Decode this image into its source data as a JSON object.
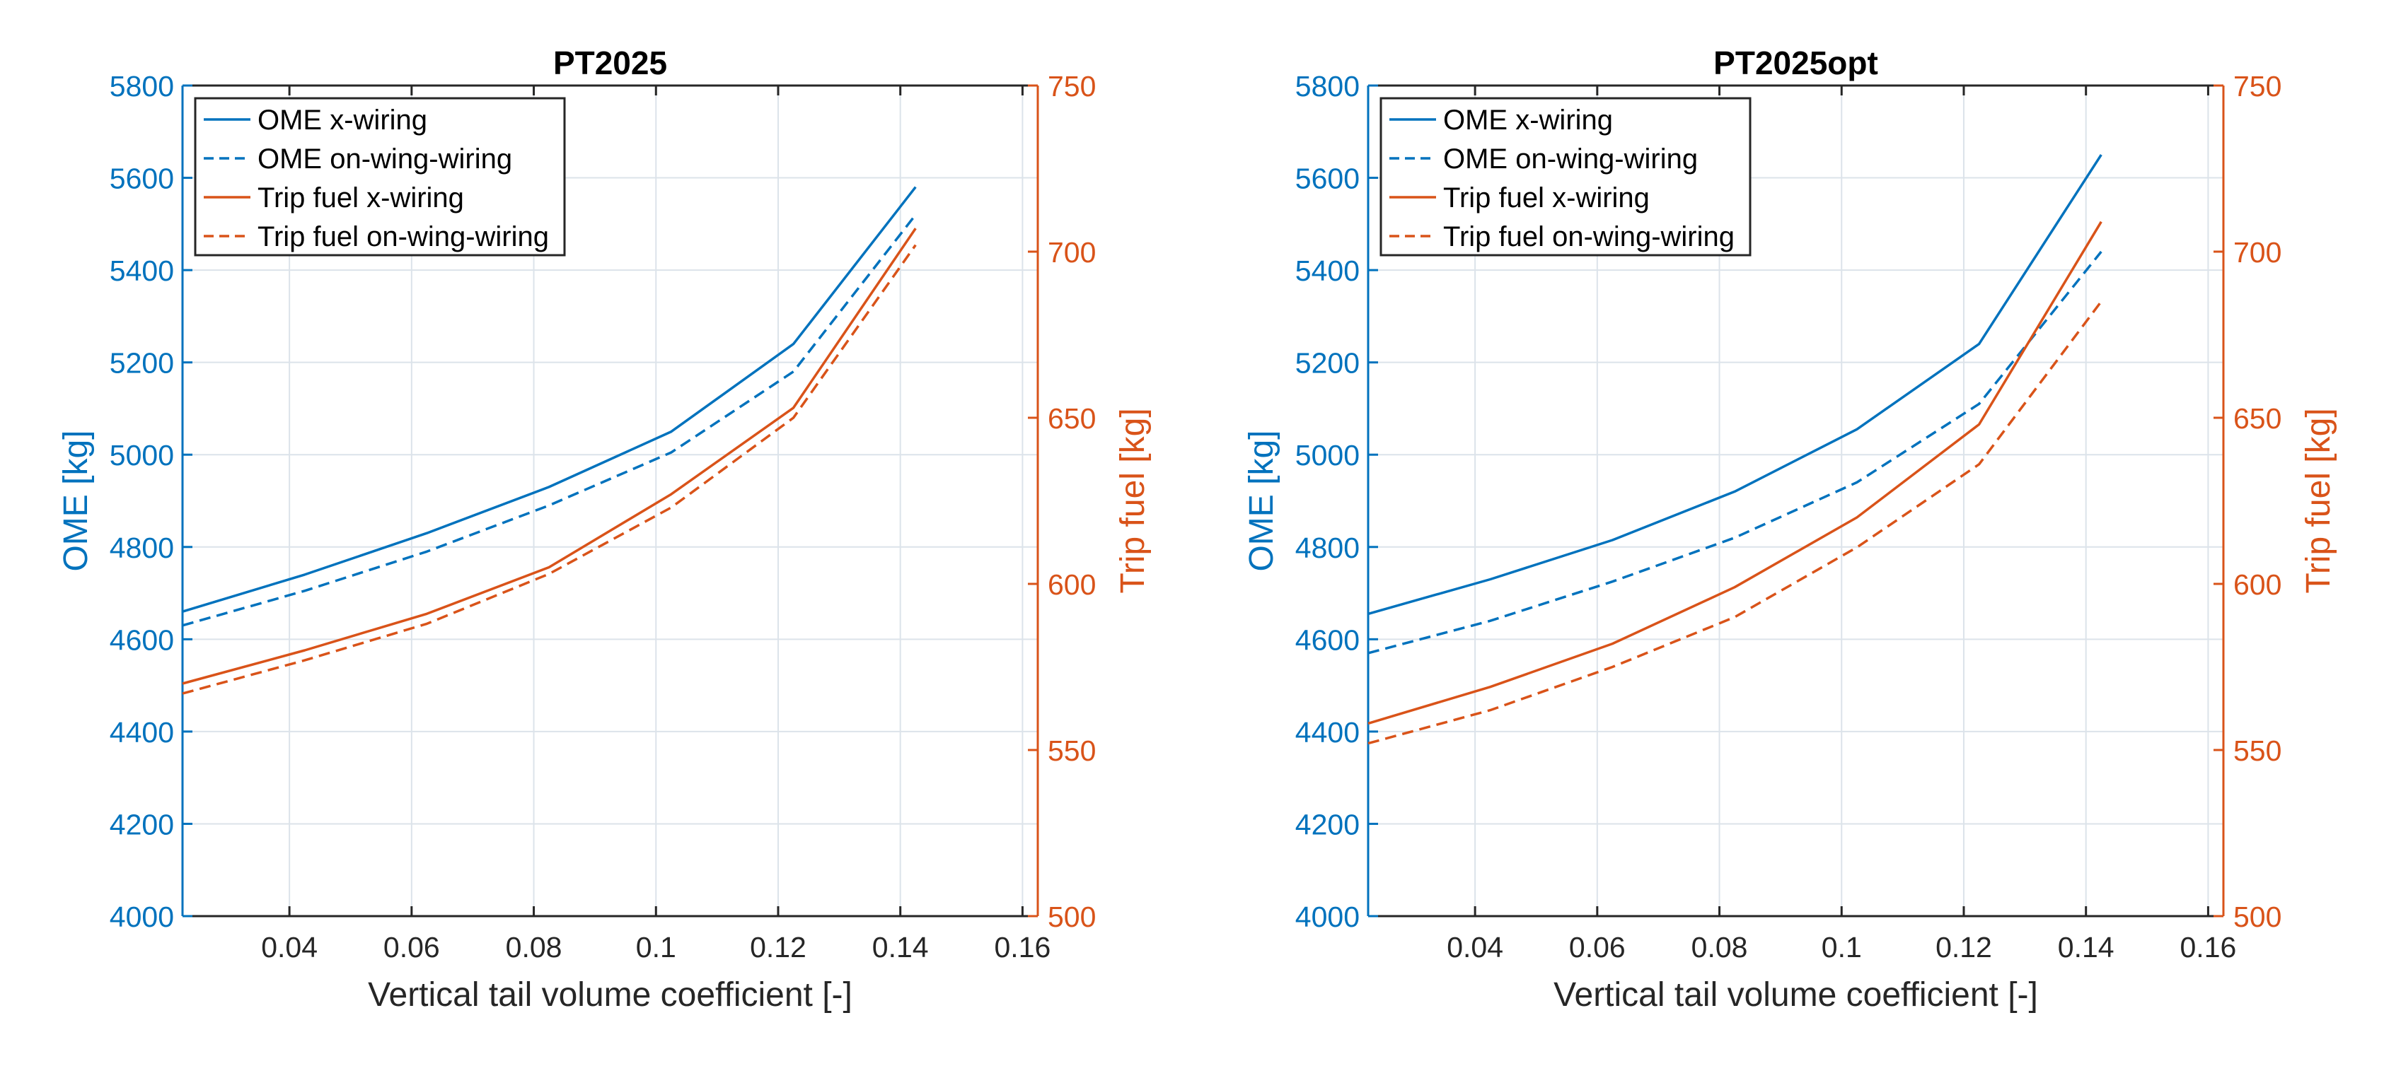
{
  "colors": {
    "left_axis": "#0072BD",
    "right_axis": "#D95319",
    "grid": "#DCE3EA",
    "frame": "#262626"
  },
  "chart_data": [
    {
      "type": "line",
      "title": "PT2025",
      "xlabel": "Vertical tail volume coefficient [-]",
      "ylabel_left": "OME [kg]",
      "ylabel_right": "Trip fuel [kg]",
      "xlim": [
        0.0225,
        0.1625
      ],
      "ylim_left": [
        4000,
        5800
      ],
      "ylim_right": [
        500,
        750
      ],
      "xticks": [
        0.04,
        0.06,
        0.08,
        0.1,
        0.12,
        0.14,
        0.16
      ],
      "xtick_labels": [
        "0.04",
        "0.06",
        "0.08",
        "0.1",
        "0.12",
        "0.14",
        "0.16"
      ],
      "yticks_left": [
        "4000",
        "4200",
        "4400",
        "4600",
        "4800",
        "5000",
        "5200",
        "5400",
        "5600",
        "5800"
      ],
      "yticks_right": [
        "500",
        "550",
        "600",
        "650",
        "700",
        "750"
      ],
      "grid": true,
      "legend_position": "top-left",
      "x": [
        0.0225,
        0.0425,
        0.0625,
        0.0825,
        0.1025,
        0.1225,
        0.1425
      ],
      "series": [
        {
          "name": "OME x-wiring",
          "axis": "left",
          "style": "solid",
          "values": [
            4660,
            4740,
            4830,
            4930,
            5050,
            5240,
            5580
          ]
        },
        {
          "name": "OME on-wing-wiring",
          "axis": "left",
          "style": "dashed",
          "values": [
            4630,
            4705,
            4790,
            4890,
            5005,
            5180,
            5520
          ]
        },
        {
          "name": "Trip fuel x-wiring",
          "axis": "right",
          "style": "solid",
          "values": [
            570,
            580,
            591,
            605,
            627,
            653,
            707
          ]
        },
        {
          "name": "Trip fuel on-wing-wiring",
          "axis": "right",
          "style": "dashed",
          "values": [
            567,
            577,
            588,
            603,
            623,
            650,
            702
          ]
        }
      ]
    },
    {
      "type": "line",
      "title": "PT2025opt",
      "xlabel": "Vertical tail volume coefficient [-]",
      "ylabel_left": "OME [kg]",
      "ylabel_right": "Trip fuel [kg]",
      "xlim": [
        0.0225,
        0.1625
      ],
      "ylim_left": [
        4000,
        5800
      ],
      "ylim_right": [
        500,
        750
      ],
      "xticks": [
        0.04,
        0.06,
        0.08,
        0.1,
        0.12,
        0.14,
        0.16
      ],
      "xtick_labels": [
        "0.04",
        "0.06",
        "0.08",
        "0.1",
        "0.12",
        "0.14",
        "0.16"
      ],
      "yticks_left": [
        "4000",
        "4200",
        "4400",
        "4600",
        "4800",
        "5000",
        "5200",
        "5400",
        "5600",
        "5800"
      ],
      "yticks_right": [
        "500",
        "550",
        "600",
        "650",
        "700",
        "750"
      ],
      "grid": true,
      "legend_position": "top-left",
      "x": [
        0.0225,
        0.0425,
        0.0625,
        0.0825,
        0.1025,
        0.1225,
        0.1425
      ],
      "series": [
        {
          "name": "OME x-wiring",
          "axis": "left",
          "style": "solid",
          "values": [
            4655,
            4730,
            4815,
            4920,
            5055,
            5240,
            5650
          ]
        },
        {
          "name": "OME on-wing-wiring",
          "axis": "left",
          "style": "dashed",
          "values": [
            4570,
            4640,
            4725,
            4820,
            4940,
            5110,
            5440
          ]
        },
        {
          "name": "Trip fuel x-wiring",
          "axis": "right",
          "style": "solid",
          "values": [
            558,
            569,
            582,
            599,
            620,
            648,
            709
          ]
        },
        {
          "name": "Trip fuel on-wing-wiring",
          "axis": "right",
          "style": "dashed",
          "values": [
            552,
            562,
            575,
            590,
            611,
            636,
            685
          ]
        }
      ]
    }
  ]
}
